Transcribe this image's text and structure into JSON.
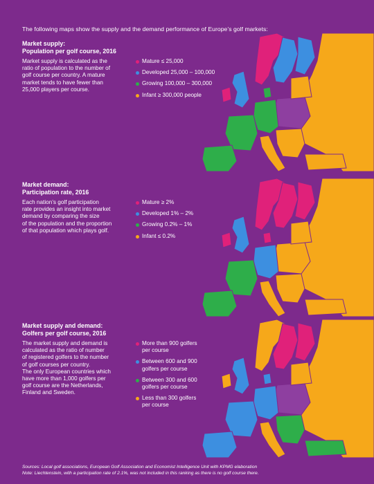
{
  "intro": "The following maps show the supply and the demand performance of Europe’s golf markets:",
  "colors": {
    "background": "#7d2a8c",
    "mature": "#e0217a",
    "developed": "#3d8fe0",
    "growing": "#2eae4a",
    "infant": "#f6a81a",
    "other": "#8e3fa0"
  },
  "sections": [
    {
      "title_line1": "Market supply:",
      "title_line2": "Population per golf course, 2016",
      "description": [
        "Market supply is calculated as the",
        "ratio of population to the number of",
        "golf course per country. A mature",
        "market tends to have fewer than",
        "25,000 players per course."
      ],
      "legend": [
        {
          "lines": [
            "Mature ≤ 25,000"
          ],
          "color": "mature"
        },
        {
          "lines": [
            "Developed 25,000 – 100,000"
          ],
          "color": "developed"
        },
        {
          "lines": [
            "Growing 100,000 – 300,000"
          ],
          "color": "growing"
        },
        {
          "lines": [
            "Infant ≥ 300,000 people"
          ],
          "color": "infant"
        }
      ]
    },
    {
      "title_line1": "Market demand:",
      "title_line2": "Participation rate, 2016",
      "description": [
        "Each nation’s golf participation",
        "rate provides an insight into market",
        "demand by comparing the size",
        "of the population and the proportion",
        "of that population which plays golf."
      ],
      "legend": [
        {
          "lines": [
            "Mature ≥ 2%"
          ],
          "color": "mature"
        },
        {
          "lines": [
            "Developed 1% – 2%"
          ],
          "color": "developed"
        },
        {
          "lines": [
            "Growing 0.2% – 1%"
          ],
          "color": "growing"
        },
        {
          "lines": [
            "Infant ≤ 0.2%"
          ],
          "color": "infant"
        }
      ]
    },
    {
      "title_line1": "Market supply and demand:",
      "title_line2": "Golfers per golf course, 2016",
      "description": [
        "The market supply and demand is",
        "calculated as the ratio of number",
        "of registered golfers to the number",
        "of golf courses per country.",
        "The only European countries which",
        "have more than 1,000 golfers per",
        "golf course are the Netherlands,",
        "Finland and Sweden."
      ],
      "legend": [
        {
          "lines": [
            "More than 900 golfers",
            "per course"
          ],
          "color": "mature"
        },
        {
          "lines": [
            "Between 600 and 900",
            "golfers per course"
          ],
          "color": "developed"
        },
        {
          "lines": [
            "Between 300 and 600",
            "golfers per course"
          ],
          "color": "growing"
        },
        {
          "lines": [
            "Less than 300 golfers",
            "per course"
          ],
          "color": "infant"
        }
      ]
    }
  ],
  "footer": {
    "sources": "Sources: Local golf associations, European Golf Association and Economist Intelligence Unit with KPMG elaboration",
    "note": "Note: Liechtenstein, with a participation rate of 2.1%, was not included in this ranking as there is no golf course there."
  }
}
